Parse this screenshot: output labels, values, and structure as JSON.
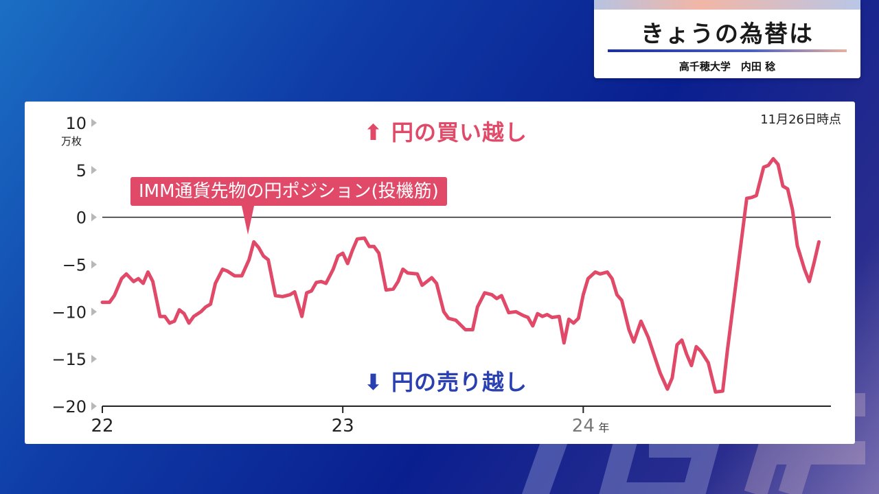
{
  "header": {
    "title": "きょうの為替は",
    "subtitle": "高千穂大学　内田 稔"
  },
  "chart_data": {
    "type": "line",
    "title": "IMM通貨先物の円ポジション(投機筋)",
    "as_of": "11月26日時点",
    "y_unit": "万枚",
    "ylim": [
      -20,
      10
    ],
    "y_ticks": [
      10,
      5,
      0,
      -5,
      -10,
      -15,
      -20
    ],
    "y_tick_labels": [
      "10",
      "5",
      "0",
      "−5",
      "−10",
      "−15",
      "−20"
    ],
    "x_tick_labels": [
      "22",
      "23",
      "24"
    ],
    "x_tick_positions": [
      2022.0,
      2023.0,
      2024.0
    ],
    "x_suffix": "年",
    "xlim": [
      2022.0,
      2025.03
    ],
    "annotations": {
      "upper": "円の買い越し",
      "lower": "円の売り越し"
    },
    "series": [
      {
        "color": "#e04a68",
        "points": [
          [
            2022.0,
            -9
          ],
          [
            2022.03,
            -9
          ],
          [
            2022.05,
            -8.3
          ],
          [
            2022.08,
            -6.5
          ],
          [
            2022.1,
            -6
          ],
          [
            2022.13,
            -6.8
          ],
          [
            2022.15,
            -6.5
          ],
          [
            2022.17,
            -7
          ],
          [
            2022.19,
            -5.8
          ],
          [
            2022.21,
            -6.8
          ],
          [
            2022.24,
            -10.5
          ],
          [
            2022.26,
            -10.5
          ],
          [
            2022.28,
            -11.2
          ],
          [
            2022.3,
            -11
          ],
          [
            2022.32,
            -9.8
          ],
          [
            2022.34,
            -10.2
          ],
          [
            2022.36,
            -11.2
          ],
          [
            2022.38,
            -10.5
          ],
          [
            2022.41,
            -10
          ],
          [
            2022.43,
            -9.5
          ],
          [
            2022.45,
            -9.2
          ],
          [
            2022.47,
            -7
          ],
          [
            2022.5,
            -5.5
          ],
          [
            2022.52,
            -5.7
          ],
          [
            2022.55,
            -6.2
          ],
          [
            2022.58,
            -6.2
          ],
          [
            2022.61,
            -4.5
          ],
          [
            2022.63,
            -2.6
          ],
          [
            2022.65,
            -3.2
          ],
          [
            2022.67,
            -4.1
          ],
          [
            2022.69,
            -4.5
          ],
          [
            2022.72,
            -8.3
          ],
          [
            2022.75,
            -8.4
          ],
          [
            2022.78,
            -8.2
          ],
          [
            2022.8,
            -7.9
          ],
          [
            2022.83,
            -10.5
          ],
          [
            2022.85,
            -8
          ],
          [
            2022.87,
            -7.8
          ],
          [
            2022.89,
            -6.9
          ],
          [
            2022.91,
            -6.8
          ],
          [
            2022.93,
            -7
          ],
          [
            2022.96,
            -5.5
          ],
          [
            2022.98,
            -4.1
          ],
          [
            2023.0,
            -3.8
          ],
          [
            2023.02,
            -4.9
          ],
          [
            2023.04,
            -3.5
          ],
          [
            2023.06,
            -2.3
          ],
          [
            2023.09,
            -2.2
          ],
          [
            2023.11,
            -3.1
          ],
          [
            2023.13,
            -3.1
          ],
          [
            2023.15,
            -3.8
          ],
          [
            2023.18,
            -7.7
          ],
          [
            2023.21,
            -7.6
          ],
          [
            2023.23,
            -6.8
          ],
          [
            2023.25,
            -5.5
          ],
          [
            2023.27,
            -5.9
          ],
          [
            2023.31,
            -6
          ],
          [
            2023.33,
            -7.2
          ],
          [
            2023.35,
            -6.8
          ],
          [
            2023.37,
            -6.4
          ],
          [
            2023.39,
            -7
          ],
          [
            2023.42,
            -10
          ],
          [
            2023.44,
            -10.7
          ],
          [
            2023.47,
            -10.9
          ],
          [
            2023.51,
            -11.9
          ],
          [
            2023.54,
            -11.9
          ],
          [
            2023.56,
            -9.5
          ],
          [
            2023.59,
            -8
          ],
          [
            2023.62,
            -8.2
          ],
          [
            2023.64,
            -8.6
          ],
          [
            2023.66,
            -8.3
          ],
          [
            2023.69,
            -10.1
          ],
          [
            2023.72,
            -10
          ],
          [
            2023.75,
            -10.4
          ],
          [
            2023.77,
            -10.6
          ],
          [
            2023.79,
            -11.5
          ],
          [
            2023.81,
            -10.2
          ],
          [
            2023.83,
            -10.5
          ],
          [
            2023.85,
            -10.3
          ],
          [
            2023.87,
            -10.6
          ],
          [
            2023.9,
            -10.5
          ],
          [
            2023.92,
            -13.3
          ],
          [
            2023.94,
            -10.8
          ],
          [
            2023.96,
            -11.2
          ],
          [
            2023.98,
            -10.7
          ],
          [
            2024.0,
            -8.2
          ],
          [
            2024.02,
            -6.5
          ],
          [
            2024.05,
            -5.8
          ],
          [
            2024.07,
            -6
          ],
          [
            2024.1,
            -5.8
          ],
          [
            2024.12,
            -6.5
          ],
          [
            2024.14,
            -8.2
          ],
          [
            2024.16,
            -8.8
          ],
          [
            2024.19,
            -11.9
          ],
          [
            2024.21,
            -13.2
          ],
          [
            2024.24,
            -11
          ],
          [
            2024.27,
            -12.7
          ],
          [
            2024.3,
            -15
          ],
          [
            2024.32,
            -16.5
          ],
          [
            2024.35,
            -18.2
          ],
          [
            2024.37,
            -17
          ],
          [
            2024.39,
            -13.5
          ],
          [
            2024.41,
            -13
          ],
          [
            2024.43,
            -14.5
          ],
          [
            2024.45,
            -15.7
          ],
          [
            2024.47,
            -13.7
          ],
          [
            2024.49,
            -14.2
          ],
          [
            2024.52,
            -15.4
          ],
          [
            2024.55,
            -18.5
          ],
          [
            2024.58,
            -18.4
          ],
          [
            2024.6,
            -14
          ],
          [
            2024.63,
            -8
          ],
          [
            2024.66,
            -2
          ],
          [
            2024.68,
            2
          ],
          [
            2024.7,
            2.1
          ],
          [
            2024.72,
            2.3
          ],
          [
            2024.75,
            5.3
          ],
          [
            2024.77,
            5.5
          ],
          [
            2024.79,
            6.2
          ],
          [
            2024.81,
            5.6
          ],
          [
            2024.83,
            3.3
          ],
          [
            2024.85,
            3
          ],
          [
            2024.87,
            0.8
          ],
          [
            2024.89,
            -3
          ],
          [
            2024.92,
            -5.5
          ],
          [
            2024.94,
            -6.8
          ],
          [
            2024.96,
            -4.8
          ],
          [
            2024.98,
            -2.6
          ]
        ]
      }
    ]
  },
  "colors": {
    "line": "#e04a68",
    "buy": "#e04a68",
    "sell": "#2a3fb0",
    "axis": "#222222"
  }
}
